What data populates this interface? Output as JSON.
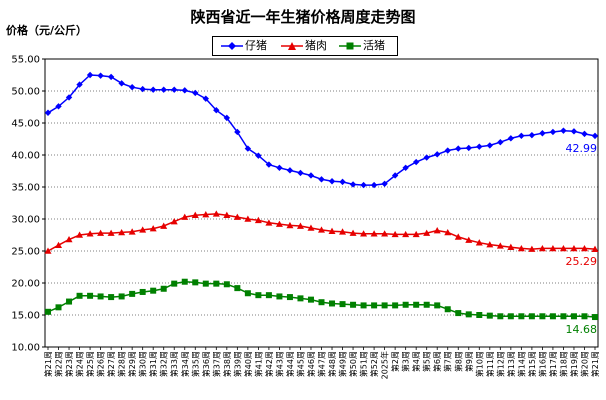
{
  "chart_data": {
    "type": "line",
    "title": "陕西省近一年生猪价格周度走势图",
    "ylabel": "价格（元/公斤）",
    "xlabel": "",
    "ylim": [
      10,
      55
    ],
    "yticks": [
      "10.00",
      "15.00",
      "20.00",
      "25.00",
      "30.00",
      "35.00",
      "40.00",
      "45.00",
      "50.00",
      "55.00"
    ],
    "grid": true,
    "legend_position": "top-center",
    "categories": [
      "第21周",
      "第22周",
      "第23周",
      "第24周",
      "第25周",
      "第26周",
      "第27周",
      "第28周",
      "第29周",
      "第30周",
      "第31周",
      "第32周",
      "第33周",
      "第34周",
      "第35周",
      "第36周",
      "第37周",
      "第38周",
      "第39周",
      "第40周",
      "第41周",
      "第42周",
      "第43周",
      "第44周",
      "第45周",
      "第46周",
      "第47周",
      "第48周",
      "第49周",
      "第50周",
      "第51周",
      "第52周",
      "2025年第1周",
      "第2周",
      "第3周",
      "第4周",
      "第5周",
      "第6周",
      "第7周",
      "第8周",
      "第9周",
      "第10周",
      "第11周",
      "第12周",
      "第13周",
      "第14周",
      "第15周",
      "第16周",
      "第17周",
      "第18周",
      "第19周",
      "第20周",
      "第21周"
    ],
    "x_tick_labels": [
      "第21周",
      "第22周",
      "第23周",
      "第24周",
      "第25周",
      "第26周",
      "第27周",
      "第28周",
      "第29周",
      "第30周",
      "第31周",
      "第32周",
      "第33周",
      "第34周",
      "第35周",
      "第36周",
      "第37周",
      "第38周",
      "第39周",
      "第40周",
      "第41周",
      "第42周",
      "第43周",
      "第44周",
      "第45周",
      "第46周",
      "第47周",
      "第48周",
      "第49周",
      "第50周",
      "第51周",
      "第52周",
      "2025年",
      "第2周",
      "第3周",
      "第4周",
      "第5周",
      "第6周",
      "第7周",
      "第8周",
      "第9周",
      "第10周",
      "第11周",
      "第12周",
      "第13周",
      "第14周",
      "第15周",
      "第16周",
      "第17周",
      "第18周",
      "第19周",
      "第20周",
      "第21周"
    ],
    "series": [
      {
        "name": "仔猪",
        "color": "#0000ff",
        "marker": "diamond",
        "end_label": "42.99",
        "values": [
          46.6,
          47.6,
          49.0,
          51.0,
          52.5,
          52.4,
          52.2,
          51.2,
          50.6,
          50.3,
          50.2,
          50.2,
          50.2,
          50.1,
          49.7,
          48.8,
          47.0,
          45.8,
          43.6,
          41.0,
          39.9,
          38.5,
          38.0,
          37.6,
          37.2,
          36.8,
          36.2,
          35.9,
          35.8,
          35.4,
          35.3,
          35.3,
          35.5,
          36.8,
          38.0,
          38.9,
          39.6,
          40.1,
          40.7,
          41.0,
          41.1,
          41.3,
          41.5,
          42.0,
          42.6,
          43.0,
          43.1,
          43.4,
          43.6,
          43.8,
          43.7,
          43.3,
          42.99
        ]
      },
      {
        "name": "猪肉",
        "color": "#e60000",
        "marker": "triangle",
        "end_label": "25.29",
        "values": [
          25.0,
          25.9,
          26.8,
          27.5,
          27.7,
          27.8,
          27.8,
          27.9,
          28.0,
          28.3,
          28.5,
          28.9,
          29.6,
          30.3,
          30.6,
          30.7,
          30.8,
          30.6,
          30.3,
          30.0,
          29.8,
          29.4,
          29.2,
          29.0,
          28.9,
          28.6,
          28.3,
          28.1,
          28.0,
          27.8,
          27.7,
          27.7,
          27.7,
          27.6,
          27.6,
          27.6,
          27.8,
          28.2,
          27.9,
          27.2,
          26.7,
          26.3,
          26.0,
          25.8,
          25.6,
          25.4,
          25.3,
          25.4,
          25.4,
          25.4,
          25.4,
          25.4,
          25.29
        ]
      },
      {
        "name": "活猪",
        "color": "#008000",
        "marker": "square",
        "end_label": "14.68",
        "values": [
          15.5,
          16.2,
          17.1,
          18.0,
          18.0,
          17.9,
          17.8,
          17.9,
          18.3,
          18.6,
          18.8,
          19.1,
          19.9,
          20.2,
          20.1,
          19.9,
          19.9,
          19.8,
          19.2,
          18.4,
          18.1,
          18.1,
          17.9,
          17.8,
          17.6,
          17.4,
          17.0,
          16.8,
          16.7,
          16.6,
          16.5,
          16.5,
          16.5,
          16.5,
          16.6,
          16.6,
          16.6,
          16.5,
          15.9,
          15.3,
          15.1,
          15.0,
          14.9,
          14.8,
          14.8,
          14.8,
          14.8,
          14.8,
          14.8,
          14.8,
          14.8,
          14.8,
          14.68
        ]
      }
    ]
  }
}
